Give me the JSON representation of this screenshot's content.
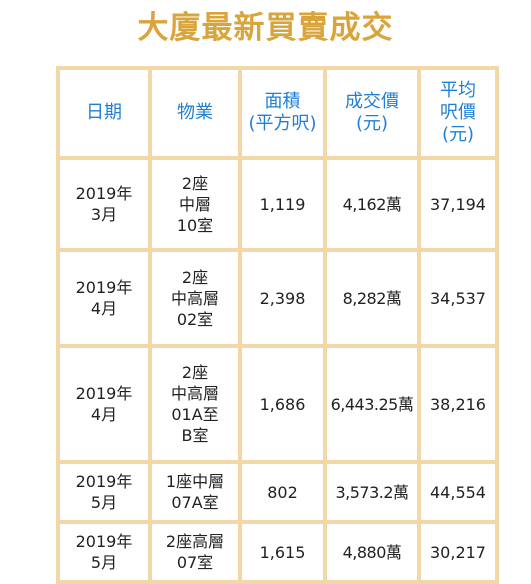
{
  "title": "大廈最新買賣成交",
  "table": {
    "headers": {
      "date": "日期",
      "property": "物業",
      "area": "面積\n(平方呎)",
      "price": "成交價\n(元)",
      "unit_price": "平均\n呎價\n(元)"
    },
    "rows": [
      {
        "date": "2019年\n3月",
        "property": "2座\n中層\n10室",
        "area": "1,119",
        "price": "4,162萬",
        "unit_price": "37,194"
      },
      {
        "date": "2019年\n4月",
        "property": "2座\n中高層\n02室",
        "area": "2,398",
        "price": "8,282萬",
        "unit_price": "34,537"
      },
      {
        "date": "2019年\n4月",
        "property": "2座\n中高層\n01A至\nB室",
        "area": "1,686",
        "price": "6,443.25萬",
        "unit_price": "38,216"
      },
      {
        "date": "2019年\n5月",
        "property": "1座中層\n07A室",
        "area": "802",
        "price": "3,573.2萬",
        "unit_price": "44,554"
      },
      {
        "date": "2019年\n5月",
        "property": "2座高層\n07室",
        "area": "1,615",
        "price": "4,880萬",
        "unit_price": "30,217"
      }
    ]
  },
  "colors": {
    "title": "#d9a53a",
    "header_text": "#1f7fd6",
    "border": "#f2d8a8"
  }
}
